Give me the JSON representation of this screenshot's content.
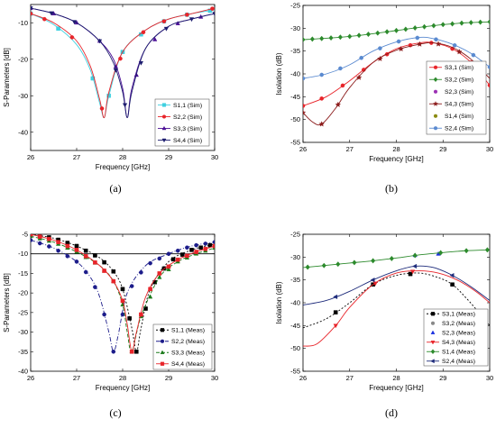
{
  "chart_data": [
    {
      "type": "line",
      "panel_label": "(a)",
      "xlabel": "Frequency [GHz]",
      "ylabel": "S-Parameters [dB]",
      "xlim": [
        26,
        30
      ],
      "ylim": [
        -45,
        -5
      ],
      "xticks": [
        26,
        27,
        28,
        29,
        30
      ],
      "yticks": [
        -10,
        -20,
        -30,
        -40
      ],
      "legend_position": "bottom-right",
      "series": [
        {
          "name": "S1,1 (Sim)",
          "color": "#3fd0e0",
          "marker": "square",
          "dash": "",
          "x": [
            26.0,
            26.5,
            27.0,
            27.3,
            27.5,
            27.6,
            27.7,
            28.0,
            28.5,
            29.0,
            29.5,
            30.0
          ],
          "y": [
            -7.5,
            -10.5,
            -16,
            -23,
            -32,
            -36,
            -30,
            -18,
            -12,
            -9,
            -7.5,
            -6.5
          ],
          "marker_x": [
            26.0,
            26.6,
            27.35,
            27.7,
            28.0,
            28.4,
            28.9,
            29.4,
            29.9
          ]
        },
        {
          "name": "S2,2 (Sim)",
          "color": "#e8242a",
          "marker": "circle",
          "dash": "",
          "x": [
            26.0,
            26.5,
            27.0,
            27.3,
            27.5,
            27.6,
            27.7,
            28.0,
            28.5,
            29.0,
            29.5,
            30.0
          ],
          "y": [
            -7.5,
            -10,
            -15,
            -22,
            -31,
            -36,
            -29,
            -18,
            -12,
            -9,
            -7.5,
            -6
          ],
          "marker_x": [
            26.0,
            26.3,
            26.9,
            27.55,
            27.95,
            28.45,
            28.9,
            29.4,
            29.95
          ]
        },
        {
          "name": "S3,3 (Sim)",
          "color": "#4b0f96",
          "marker": "triangle-up",
          "dash": "",
          "x": [
            26.0,
            26.5,
            27.0,
            27.5,
            27.8,
            28.0,
            28.1,
            28.2,
            28.5,
            29.0,
            29.5,
            30.0
          ],
          "y": [
            -6,
            -7.5,
            -10,
            -15,
            -20,
            -28,
            -36,
            -28,
            -17,
            -11,
            -9,
            -7.5
          ],
          "marker_x": [
            26.0,
            26.5,
            27.0,
            27.5,
            27.85,
            28.3,
            28.7,
            29.2,
            29.7
          ]
        },
        {
          "name": "S4,4 (Sim)",
          "color": "#1c1c6e",
          "marker": "triangle-down",
          "dash": "",
          "x": [
            26.0,
            26.5,
            27.0,
            27.5,
            27.8,
            28.0,
            28.1,
            28.2,
            28.5,
            29.0,
            29.5,
            30.0
          ],
          "y": [
            -6,
            -7.5,
            -10,
            -15,
            -21,
            -29,
            -36,
            -29,
            -17,
            -11,
            -9,
            -7.5
          ],
          "marker_x": [
            26.0,
            26.45,
            26.95,
            27.5,
            27.85,
            28.05,
            28.4,
            28.95,
            29.5,
            30.0
          ]
        }
      ]
    },
    {
      "type": "line",
      "panel_label": "(b)",
      "xlabel": "Frequency [GHz]",
      "ylabel": "Isolation (dB)",
      "xlim": [
        26,
        30
      ],
      "ylim": [
        -55,
        -25
      ],
      "xticks": [
        26,
        27,
        28,
        29,
        30
      ],
      "yticks": [
        -25,
        -30,
        -35,
        -40,
        -45,
        -50,
        -55
      ],
      "legend_position": "bottom-right",
      "series": [
        {
          "name": "S3,1 (Sim)",
          "color": "#e8242a",
          "marker": "circle",
          "dash": "",
          "x": [
            26.0,
            26.5,
            27.0,
            27.5,
            28.0,
            28.5,
            28.8,
            29.2,
            29.6,
            30.0
          ],
          "y": [
            -47,
            -45,
            -41.5,
            -37.5,
            -34.5,
            -33.2,
            -33.2,
            -34.5,
            -37.5,
            -42.5
          ],
          "marker_x": [
            26.0,
            26.4,
            26.85,
            27.3,
            27.8,
            28.3,
            28.75,
            29.2,
            29.6,
            30.0
          ]
        },
        {
          "name": "S3,2 (Sim)",
          "color": "#2c8a2c",
          "marker": "diamond",
          "dash": "",
          "x": [
            26.0,
            26.5,
            27.0,
            27.5,
            28.0,
            28.5,
            29.0,
            29.5,
            30.0
          ],
          "y": [
            -32.5,
            -32.2,
            -31.8,
            -31.2,
            -30.5,
            -29.8,
            -29.2,
            -28.8,
            -28.6
          ],
          "marker_x": [
            26.0,
            26.2,
            26.4,
            26.6,
            26.8,
            27.0,
            27.2,
            27.4,
            27.6,
            27.8,
            28.0,
            28.2,
            28.4,
            28.6,
            28.8,
            29.0,
            29.2,
            29.4,
            29.6,
            29.8,
            30.0
          ]
        },
        {
          "name": "S2,3 (Sim)",
          "color": "#9b30b4",
          "marker": "circle",
          "dash": "",
          "x": [],
          "y": [],
          "marker_x": []
        },
        {
          "name": "S4,3 (Sim)",
          "color": "#8b1a1a",
          "marker": "star",
          "dash": "",
          "x": [
            26.0,
            26.2,
            26.4,
            26.7,
            27.0,
            27.5,
            28.0,
            28.5,
            28.8,
            29.2,
            29.6,
            30.0
          ],
          "y": [
            -48.5,
            -50.5,
            -51,
            -47.5,
            -43,
            -37.5,
            -34.8,
            -33.5,
            -33.2,
            -34.2,
            -36.8,
            -41
          ],
          "marker_x": [
            26.0,
            26.4,
            26.75,
            27.2,
            27.65,
            28.1,
            28.5,
            28.9,
            29.35,
            29.75
          ]
        },
        {
          "name": "S1,4 (Sim)",
          "color": "#8a8a10",
          "marker": "circle",
          "dash": "",
          "x": [],
          "y": [],
          "marker_x": []
        },
        {
          "name": "S2,4 (Sim)",
          "color": "#5a8ad0",
          "marker": "circle",
          "dash": "",
          "x": [
            26.0,
            26.5,
            27.0,
            27.5,
            28.0,
            28.5,
            28.8,
            29.2,
            29.6,
            30.0
          ],
          "y": [
            -41,
            -40,
            -38,
            -35,
            -33,
            -32,
            -32.3,
            -33.5,
            -35.5,
            -38.5
          ],
          "marker_x": [
            26.0,
            26.4,
            26.8,
            27.25,
            27.65,
            28.05,
            28.45,
            28.85,
            29.25,
            29.65,
            30.0
          ]
        }
      ]
    },
    {
      "type": "line",
      "panel_label": "(c)",
      "xlabel": "Frequency [GHz]",
      "ylabel": "S-Parameters [dB]",
      "xlim": [
        26,
        30
      ],
      "ylim": [
        -40,
        -5
      ],
      "xticks": [
        26,
        27,
        28,
        29,
        30
      ],
      "yticks": [
        -5,
        -10,
        -15,
        -20,
        -25,
        -30,
        -35,
        -40
      ],
      "reference_line_y": -10,
      "legend_position": "bottom-right",
      "series": [
        {
          "name": "S1,1 (Meas)",
          "color": "#000000",
          "marker": "square",
          "dash": "2,2",
          "x": [
            26.0,
            26.5,
            27.0,
            27.5,
            27.8,
            28.0,
            28.2,
            28.3,
            28.4,
            28.6,
            29.0,
            29.5,
            30.0
          ],
          "y": [
            -5,
            -6,
            -8,
            -11,
            -14.5,
            -19,
            -29,
            -35,
            -29,
            -19,
            -12,
            -9,
            -7.5
          ],
          "marker_x": [
            26.0,
            26.2,
            26.4,
            26.6,
            26.8,
            27.0,
            27.2,
            27.4,
            27.6,
            27.8,
            28.0,
            28.15,
            28.3,
            28.5,
            28.7,
            28.9,
            29.1,
            29.3,
            29.5,
            29.7,
            29.9
          ]
        },
        {
          "name": "S2,2 (Meas)",
          "color": "#1c1c8a",
          "marker": "circle",
          "dash": "5,2,1,2",
          "x": [
            26.0,
            26.5,
            27.0,
            27.3,
            27.5,
            27.7,
            27.8,
            27.9,
            28.1,
            28.5,
            29.0,
            29.5,
            30.0
          ],
          "y": [
            -6.5,
            -8.5,
            -12,
            -16,
            -21,
            -30,
            -35,
            -31,
            -20,
            -13,
            -10,
            -8,
            -7
          ],
          "marker_x": [
            26.0,
            26.2,
            26.4,
            26.6,
            26.8,
            27.0,
            27.2,
            27.4,
            27.6,
            27.8,
            28.0,
            28.2,
            28.4,
            28.6,
            28.8,
            29.0,
            29.2,
            29.4,
            29.6,
            29.8,
            30.0
          ]
        },
        {
          "name": "S3,3 (Meas)",
          "color": "#1a7a1a",
          "marker": "triangle-up",
          "dash": "4,2",
          "x": [
            26.0,
            26.5,
            27.0,
            27.5,
            27.8,
            28.0,
            28.1,
            28.2,
            28.4,
            28.8,
            29.2,
            29.6,
            30.0
          ],
          "y": [
            -5.5,
            -7,
            -9.5,
            -13,
            -17,
            -23,
            -30,
            -35,
            -26,
            -16,
            -12,
            -10,
            -8.5
          ],
          "marker_x": [
            26.0,
            26.2,
            26.4,
            26.6,
            26.8,
            27.0,
            27.2,
            27.4,
            27.6,
            27.8,
            28.0,
            28.2,
            28.4,
            28.6,
            28.8,
            29.0,
            29.2,
            29.4,
            29.6,
            29.8,
            30.0
          ]
        },
        {
          "name": "S4,4 (Meas)",
          "color": "#e8242a",
          "marker": "square",
          "dash": "",
          "x": [
            26.0,
            26.5,
            27.0,
            27.5,
            27.8,
            28.0,
            28.1,
            28.2,
            28.3,
            28.5,
            28.8,
            29.2,
            29.6,
            30.0
          ],
          "y": [
            -5,
            -6.5,
            -9,
            -13,
            -17,
            -22,
            -28,
            -35,
            -30,
            -21,
            -15,
            -11.5,
            -9.5,
            -8
          ],
          "marker_x": [
            26.0,
            26.2,
            26.4,
            26.6,
            26.8,
            27.0,
            27.2,
            27.4,
            27.6,
            27.8,
            28.0,
            28.2,
            28.4,
            28.6,
            28.8,
            29.0,
            29.2,
            29.4,
            29.6,
            29.8,
            30.0
          ]
        }
      ]
    },
    {
      "type": "line",
      "panel_label": "(d)",
      "xlabel": "Frequency [GHz]",
      "ylabel": "Isolation (dB)",
      "xlim": [
        26,
        30
      ],
      "ylim": [
        -55,
        -25
      ],
      "xticks": [
        26,
        27,
        28,
        29,
        30
      ],
      "yticks": [
        -25,
        -30,
        -35,
        -40,
        -45,
        -50,
        -55
      ],
      "legend_position": "bottom-right",
      "series": [
        {
          "name": "S3,1 (Meas)",
          "color": "#000000",
          "marker": "square",
          "dash": "2,2",
          "x": [
            26.0,
            26.5,
            27.0,
            27.5,
            28.0,
            28.5,
            28.9,
            29.2,
            29.5,
            29.8,
            30.0
          ],
          "y": [
            -45.5,
            -43.5,
            -40,
            -36,
            -34,
            -33.5,
            -34.5,
            -36,
            -39,
            -42.5,
            -45
          ],
          "marker_x": [
            26.7,
            27.5,
            28.3,
            29.2
          ]
        },
        {
          "name": "S3,2 (Meas)",
          "color": "#888888",
          "marker": "circle",
          "dash": "",
          "x": [],
          "y": [],
          "marker_x": []
        },
        {
          "name": "S2,3 (Meas)",
          "color": "#1a30e0",
          "marker": "triangle-up",
          "dash": "",
          "x": [],
          "y": [],
          "marker_x": [
            28.4,
            28.9
          ]
        },
        {
          "name": "S4,3 (Meas)",
          "color": "#e8242a",
          "marker": "triangle-down",
          "dash": "",
          "x": [
            26.0,
            26.3,
            26.7,
            27.0,
            27.5,
            28.0,
            28.5,
            28.9,
            29.3,
            29.7,
            30.0
          ],
          "y": [
            -49.5,
            -49,
            -45,
            -41,
            -36,
            -33.5,
            -33,
            -33.5,
            -35,
            -37.5,
            -40
          ],
          "marker_x": [
            26.7,
            27.55,
            28.35
          ]
        },
        {
          "name": "S1,4 (Meas)",
          "color": "#2c8a2c",
          "marker": "diamond",
          "dash": "",
          "x": [
            26.0,
            26.5,
            27.0,
            27.5,
            28.0,
            28.5,
            29.0,
            29.5,
            30.0
          ],
          "y": [
            -32.3,
            -31.8,
            -31.3,
            -30.8,
            -30.2,
            -29.5,
            -29,
            -28.6,
            -28.4
          ],
          "marker_x": [
            26.1,
            26.45,
            26.75,
            27.1,
            27.5,
            27.9,
            28.4,
            28.95,
            29.5,
            29.95
          ]
        },
        {
          "name": "S2,4 (Meas)",
          "color": "#1c2a7a",
          "marker": "triangle-left",
          "dash": "",
          "x": [
            26.0,
            26.5,
            27.0,
            27.5,
            28.0,
            28.4,
            28.8,
            29.2,
            29.6,
            30.0
          ],
          "y": [
            -40.5,
            -39.5,
            -37.5,
            -35,
            -33,
            -32,
            -32.3,
            -34,
            -36.5,
            -39.5
          ],
          "marker_x": [
            26.7,
            27.5,
            28.4,
            29.2
          ]
        }
      ]
    }
  ]
}
